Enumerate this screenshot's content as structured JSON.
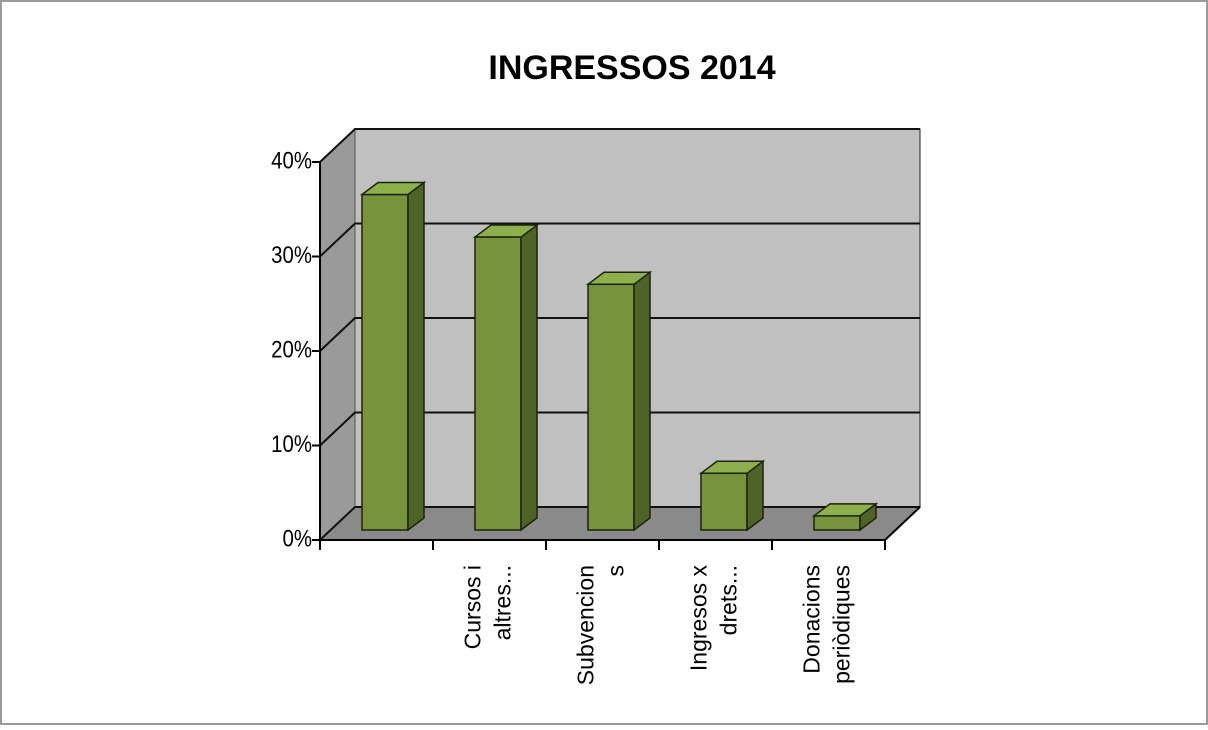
{
  "chart_data": {
    "type": "bar3d",
    "title": "INGRESSOS 2014",
    "categories": [
      null,
      [
        "Cursos i",
        "altres..."
      ],
      [
        "Subvencion",
        "s"
      ],
      [
        "Ingresos x",
        "drets..."
      ],
      [
        "Donacions",
        "periòdiques"
      ]
    ],
    "values": [
      35.5,
      31,
      26,
      6,
      1.5
    ],
    "color": "#77933c",
    "ylim": [
      0,
      40
    ],
    "yticks": [
      {
        "value": 0,
        "label": "0%"
      },
      {
        "value": 10,
        "label": "10%"
      },
      {
        "value": 20,
        "label": "20%"
      },
      {
        "value": 30,
        "label": "30%"
      },
      {
        "value": 40,
        "label": "40%"
      }
    ],
    "grid": true
  }
}
